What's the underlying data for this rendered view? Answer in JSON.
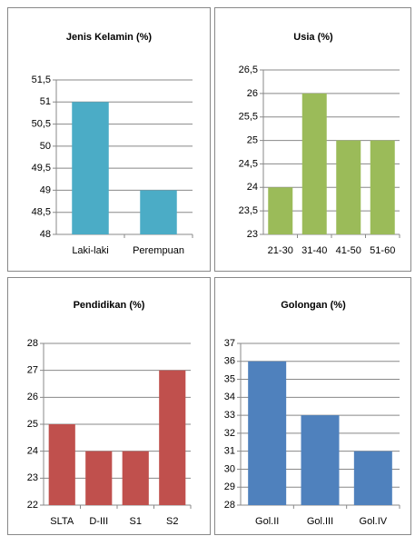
{
  "chart_data": [
    {
      "type": "bar",
      "title": "Jenis Kelamin (%)",
      "categories": [
        "Laki-laki",
        "Perempuan"
      ],
      "values": [
        51,
        49
      ],
      "color": "#4bacc6",
      "ylim": [
        48,
        51.5
      ],
      "yticks": [
        48,
        {
          "value": 48.5,
          "label": "48,5"
        },
        49,
        {
          "value": 49.5,
          "label": "49,5"
        },
        50,
        {
          "value": 50.5,
          "label": "50,5"
        },
        51,
        {
          "value": 51.5,
          "label": "51,5"
        }
      ],
      "grid": true
    },
    {
      "type": "bar",
      "title": "Usia (%)",
      "categories": [
        "21-30",
        "31-40",
        "41-50",
        "51-60"
      ],
      "values": [
        24,
        26,
        25,
        25
      ],
      "color": "#9bbb59",
      "ylim": [
        23,
        26.5
      ],
      "yticks": [
        23,
        {
          "value": 23.5,
          "label": "23,5"
        },
        24,
        {
          "value": 24.5,
          "label": "24,5"
        },
        25,
        {
          "value": 25.5,
          "label": "25,5"
        },
        26,
        {
          "value": 26.5,
          "label": "26,5"
        }
      ],
      "grid": true
    },
    {
      "type": "bar",
      "title": "Pendidikan (%)",
      "categories": [
        "SLTA",
        "D-III",
        "S1",
        "S2"
      ],
      "values": [
        25,
        24,
        24,
        27
      ],
      "color": "#c0504d",
      "ylim": [
        22,
        28
      ],
      "yticks": [
        22,
        23,
        24,
        25,
        26,
        27,
        28
      ],
      "grid": true
    },
    {
      "type": "bar",
      "title": "Golongan (%)",
      "categories": [
        "Gol.II",
        "Gol.III",
        "Gol.IV"
      ],
      "values": [
        36,
        33,
        31
      ],
      "color": "#4f81bd",
      "ylim": [
        28,
        37
      ],
      "yticks": [
        28,
        29,
        30,
        31,
        32,
        33,
        34,
        35,
        36,
        37
      ],
      "grid": true
    }
  ]
}
